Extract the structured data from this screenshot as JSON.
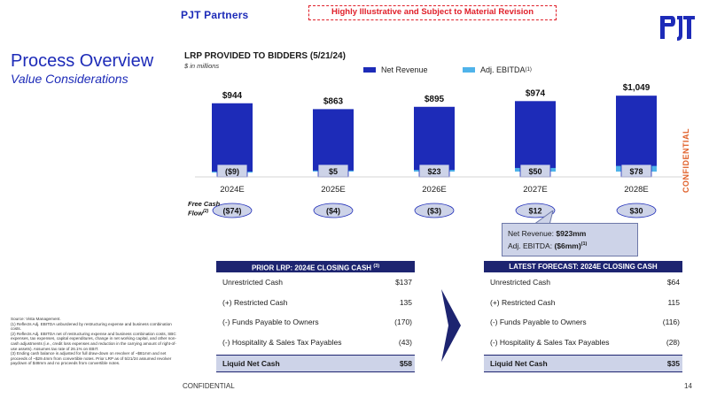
{
  "header": {
    "brand": "PJT Partners",
    "banner": "Highly Illustrative and Subject to Material Revision",
    "logo_icon": "pjt-logo-icon"
  },
  "slide": {
    "title": "Process Overview",
    "subtitle": "Value Considerations"
  },
  "chart_data": {
    "type": "bar",
    "title": "LRP PROVIDED TO BIDDERS (5/21/24)",
    "units": "$ in millions",
    "categories": [
      "2024E",
      "2025E",
      "2026E",
      "2027E",
      "2028E"
    ],
    "series": [
      {
        "name": "Net Revenue",
        "values": [
          944,
          863,
          895,
          974,
          1049
        ],
        "labels": [
          "$944",
          "$863",
          "$895",
          "$974",
          "$1,049"
        ],
        "color": "#1d2bb8"
      },
      {
        "name": "Adj. EBITDA",
        "values": [
          -9,
          5,
          23,
          50,
          78
        ],
        "labels": [
          "($9)",
          "$5",
          "$23",
          "$50",
          "$78"
        ],
        "color": "#4fb3ea"
      }
    ],
    "legend": [
      {
        "label": "Net Revenue",
        "sup": "",
        "color": "#1d2bb8"
      },
      {
        "label": "Adj. EBITDA",
        "sup": "(1)",
        "color": "#4fb3ea"
      }
    ],
    "free_cash_flow": {
      "label_line1": "Free Cash",
      "label_line2": "Flow",
      "label_sup": "(2)",
      "values": [
        -74,
        -4,
        -3,
        12,
        30
      ],
      "labels": [
        "($74)",
        "($4)",
        "($3)",
        "$12",
        "$30"
      ]
    },
    "ylim": [
      0,
      1100
    ],
    "legend_position": "top"
  },
  "callout": {
    "line1_prefix": "Net Revenue: ",
    "line1_value": "$923mm",
    "line2_prefix": "Adj. EBITDA: ",
    "line2_value": "($6mm)",
    "line2_sup": "(1)"
  },
  "side_label": "CONFIDENTIAL",
  "prior_table": {
    "header": "PRIOR LRP: 2024E CLOSING CASH",
    "header_sup": "(3)",
    "rows": [
      {
        "label": "Unrestricted Cash",
        "value": "$137"
      },
      {
        "label": "(+) Restricted Cash",
        "value": "135"
      },
      {
        "label": "(-) Funds Payable to Owners",
        "value": "(170)"
      },
      {
        "label": "(-) Hospitality & Sales Tax Payables",
        "value": "(43)"
      }
    ],
    "total": {
      "label": "Liquid Net Cash",
      "value": "$58"
    }
  },
  "latest_table": {
    "header": "LATEST FORECAST: 2024E CLOSING CASH",
    "rows": [
      {
        "label": "Unrestricted Cash",
        "value": "$64"
      },
      {
        "label": "(+) Restricted Cash",
        "value": "115"
      },
      {
        "label": "(-) Funds Payable to Owners",
        "value": "(116)"
      },
      {
        "label": "(-) Hospitality & Sales Tax Payables",
        "value": "(28)"
      }
    ],
    "total": {
      "label": "Liquid Net Cash",
      "value": "$35"
    }
  },
  "footnotes": {
    "source": "Source: Vista Management.",
    "note1": "(1) Reflects Adj. EBITDA unburdened by restructuring expense and business combination costs.",
    "note2": "(2) Reflects Adj. EBITDA net of restructuring expense and business combination costs, SBC expenses, tax expenses, capital expenditures, change in net working capital, and other non-cash adjustments (i.e., credit loss expenses and reduction in the carrying amount of right-of-use assets). Assumes tax rate of 26.1% on EBIT.",
    "note3": "(3) Ending cash balance is adjusted for full draw-down on revolver of ~$81mm and net proceeds of ~$29.4mm from convertible notes. Prior LRP as of 5/21/24 assumed revolver paydown of $48mm and no proceeds from convertible notes."
  },
  "footer": {
    "confidential": "CONFIDENTIAL",
    "page_number": "14"
  }
}
